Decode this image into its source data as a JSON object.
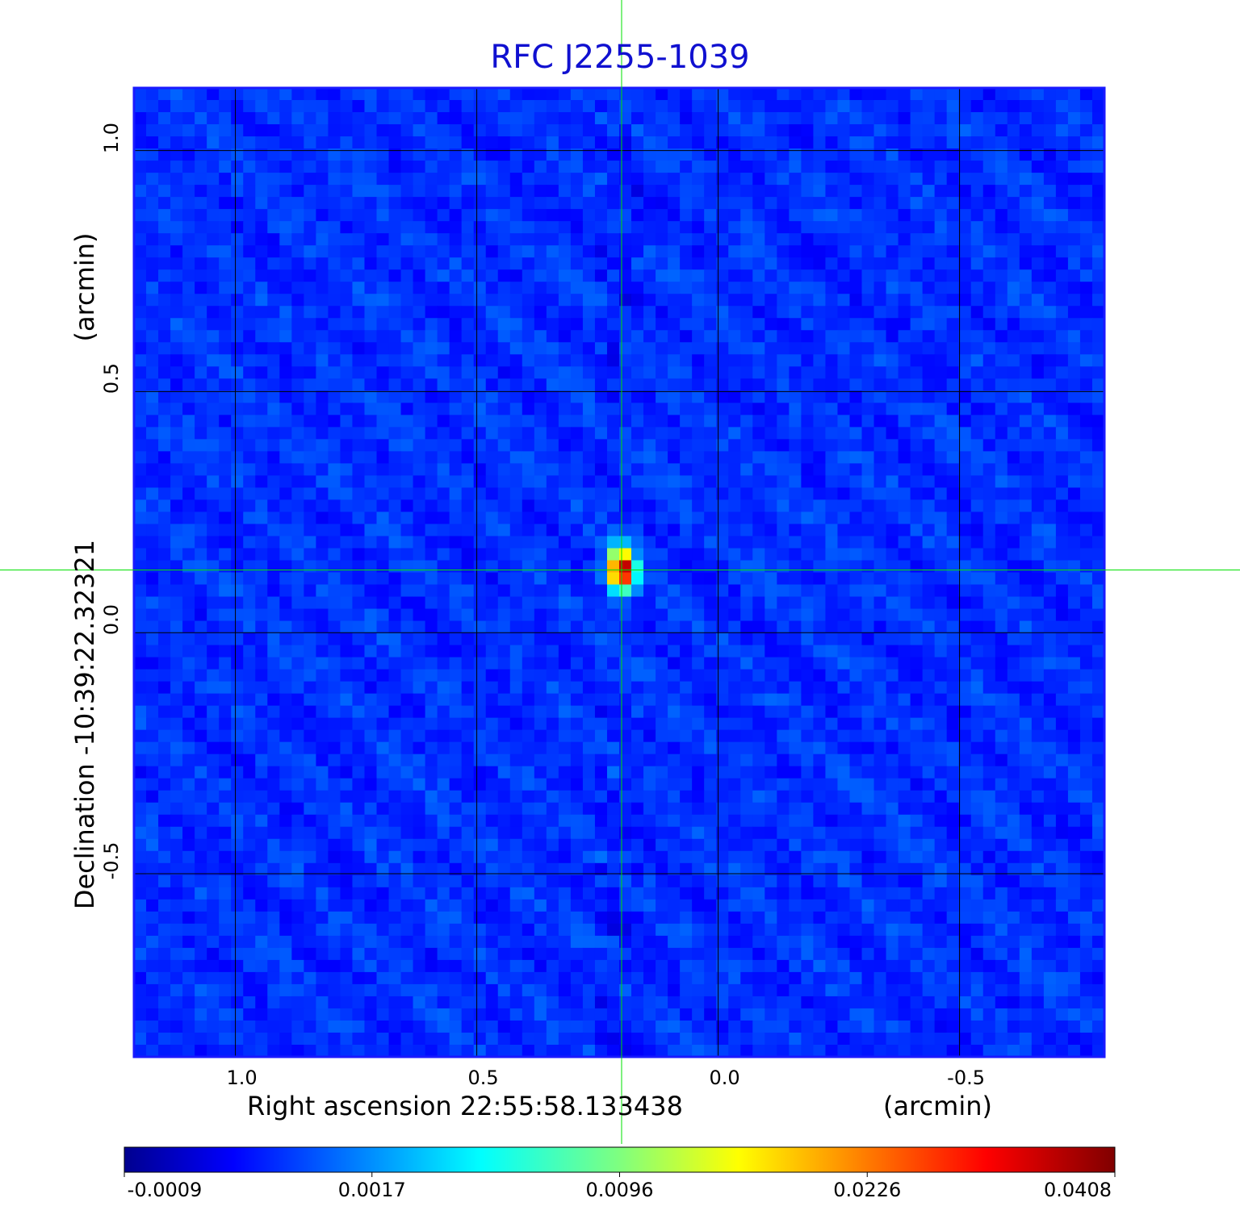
{
  "chart_data": {
    "type": "heatmap",
    "title": "RFC J2255-1039",
    "xlabel": "Right ascension  22:55:58.133438",
    "xunit": "(arcmin)",
    "ylabel": "Declination  -10:39:22.32321",
    "yunit": "(arcmin)",
    "xlim": [
      1.21,
      -0.8
    ],
    "ylim": [
      -0.88,
      1.13
    ],
    "x_ticks": [
      "1.0",
      "0.5",
      "0.0",
      "-0.5"
    ],
    "x_tick_values": [
      1.0,
      0.5,
      0.0,
      -0.5
    ],
    "y_ticks": [
      "1.0",
      "0.5",
      "0.0",
      "-0.5"
    ],
    "y_tick_values": [
      1.0,
      0.5,
      0.0,
      -0.5
    ],
    "grid": true,
    "crosshair": {
      "x": 0.2,
      "y": 0.13,
      "color": "#00e000"
    },
    "source": {
      "x": 0.2,
      "y": 0.13,
      "peak": 0.0408
    },
    "colorbar": {
      "colormap": "jet",
      "tick_labels": [
        "-0.0009",
        "0.0017",
        "0.0096",
        "0.0226",
        "0.0408"
      ],
      "tick_values": [
        -0.0009,
        0.0017,
        0.0096,
        0.0226,
        0.0408
      ]
    }
  }
}
